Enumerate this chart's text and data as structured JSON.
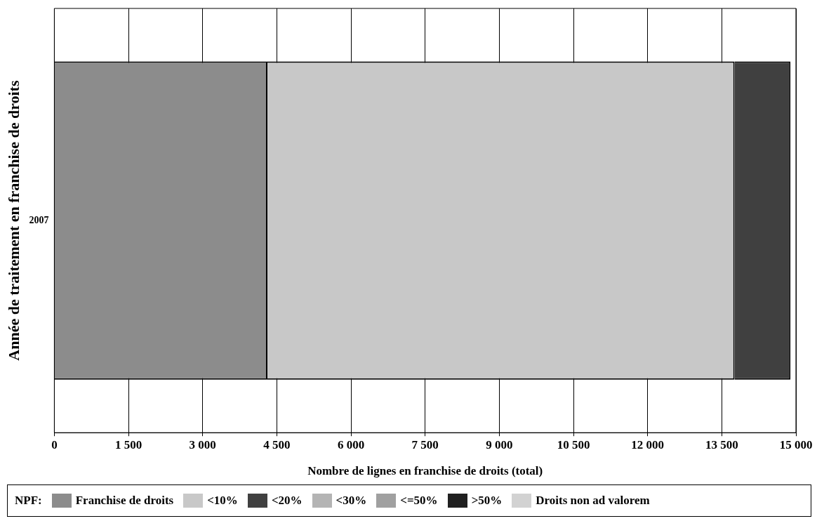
{
  "chart_data": {
    "type": "bar",
    "orientation": "horizontal",
    "stacked": true,
    "categories": [
      "2007"
    ],
    "xlabel": "Nombre de lignes en franchise de droits (total)",
    "ylabel": "Année de traitement en franchise de droits",
    "legend_title": "NPF:",
    "xlim": [
      0,
      15000
    ],
    "xticks": [
      0,
      {
        "value": 1500,
        "label": "1 500"
      },
      {
        "value": 3000,
        "label": "3 000"
      },
      {
        "value": 4500,
        "label": "4 500"
      },
      {
        "value": 6000,
        "label": "6 000"
      },
      {
        "value": 7500,
        "label": "7 500"
      },
      {
        "value": 9000,
        "label": "9 000"
      },
      {
        "value": 10500,
        "label": "10 500"
      },
      {
        "value": 12000,
        "label": "12 000"
      },
      {
        "value": 13500,
        "label": "13 500"
      },
      {
        "value": 15000,
        "label": "15 000"
      }
    ],
    "grid": "x",
    "legend": "bottom",
    "series": [
      {
        "name": "Franchise de droits",
        "color": "#8c8c8c",
        "values": [
          4310
        ]
      },
      {
        "name": "<10%",
        "color": "#c8c8c8",
        "values": [
          9450
        ]
      },
      {
        "name": "<20%",
        "color": "#404040",
        "values": [
          1130
        ]
      },
      {
        "name": "<30%",
        "color": "#b4b4b4",
        "values": [
          0
        ]
      },
      {
        "name": "<=50%",
        "color": "#a0a0a0",
        "values": [
          0
        ]
      },
      {
        "name": ">50%",
        "color": "#202020",
        "values": [
          0
        ]
      },
      {
        "name": "Droits non ad valorem",
        "color": "#d2d2d2",
        "values": [
          0
        ]
      }
    ]
  }
}
